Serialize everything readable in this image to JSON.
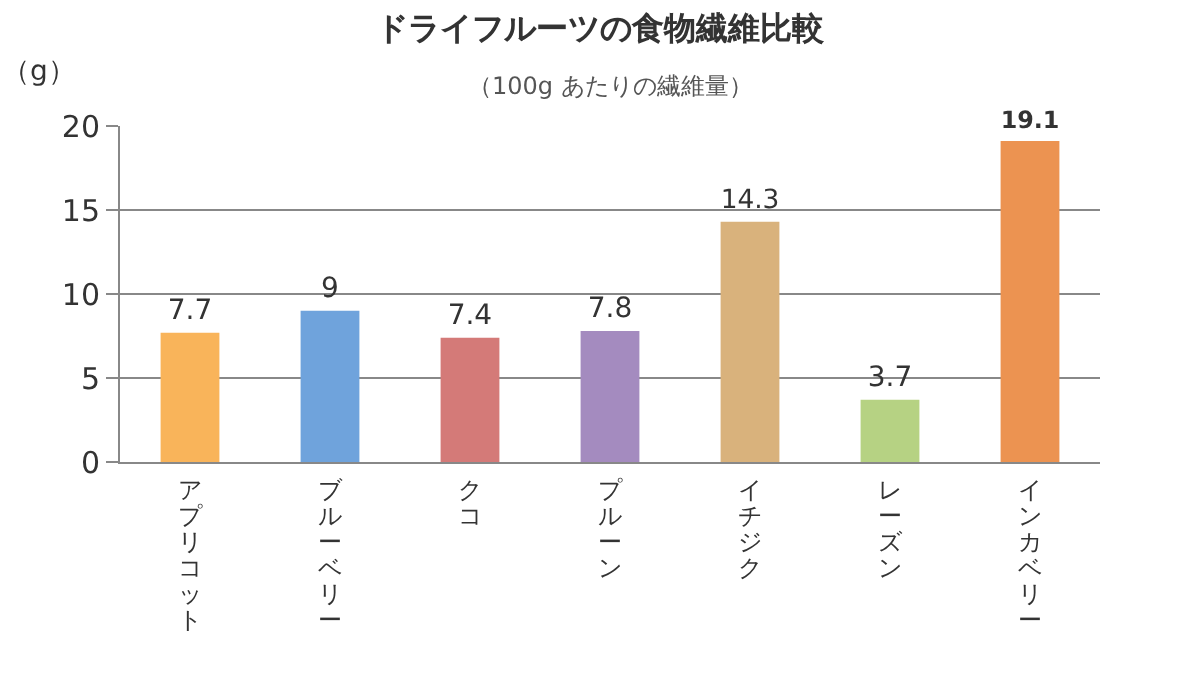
{
  "chart_data": {
    "type": "bar",
    "title": "ドライフルーツの食物繊維比較",
    "subtitle": "（100g あたりの繊維量）",
    "ylabel": "（g）",
    "categories": [
      "アプリコット",
      "ブルーベリー",
      "クコ",
      "プルーン",
      "イチジク",
      "レーズン",
      "インカベリー"
    ],
    "values": [
      7.7,
      9,
      7.4,
      7.8,
      14.3,
      3.7,
      19.1
    ],
    "colors": [
      "#f9b45a",
      "#6fa3dc",
      "#d47a78",
      "#a48bbf",
      "#d9b27c",
      "#b6d283",
      "#ec9351"
    ],
    "ylim": [
      0,
      20
    ],
    "yticks": [
      0,
      5,
      10,
      15,
      20
    ],
    "grid": "y",
    "data_labels": true
  }
}
